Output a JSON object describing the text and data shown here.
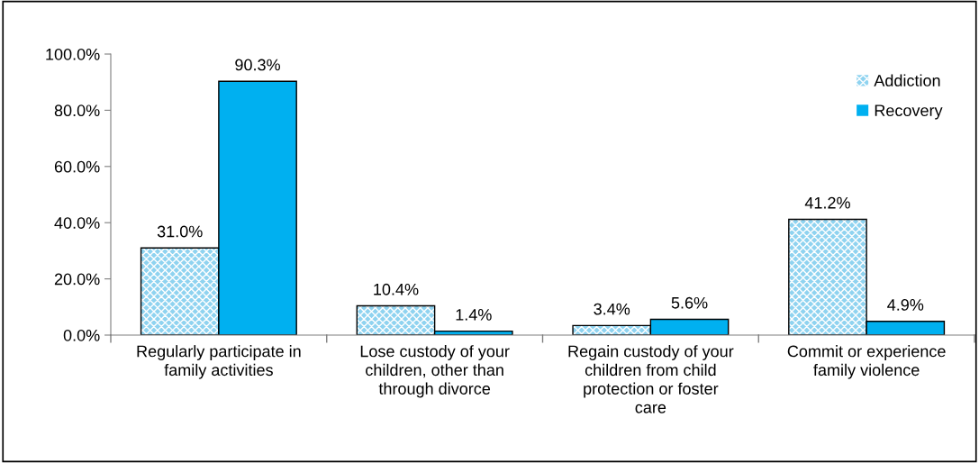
{
  "chart_data": {
    "type": "bar",
    "categories": [
      "Regularly participate in\nfamily activities",
      "Lose custody of your\nchildren, other than\nthrough divorce",
      "Regain custody of your\nchildren from child\nprotection or foster\ncare",
      "Commit or experience\nfamily violence"
    ],
    "series": [
      {
        "name": "Addiction",
        "color": "#8fd3f0",
        "values": [
          31.0,
          10.4,
          3.4,
          41.2
        ],
        "value_labels": [
          "31.0%",
          "10.4%",
          "3.4%",
          "41.2%"
        ]
      },
      {
        "name": "Recovery",
        "color": "#00b0f0",
        "values": [
          90.3,
          1.4,
          5.6,
          4.9
        ],
        "value_labels": [
          "90.3%",
          "1.4%",
          "5.6%",
          "4.9%"
        ]
      }
    ],
    "ylim": [
      0,
      100
    ],
    "yticks": [
      {
        "value": 0,
        "label": "0.0%"
      },
      {
        "value": 20,
        "label": "20.0%"
      },
      {
        "value": 40,
        "label": "40.0%"
      },
      {
        "value": 60,
        "label": "60.0%"
      },
      {
        "value": 80,
        "label": "80.0%"
      },
      {
        "value": 100,
        "label": "100.0%"
      }
    ],
    "grid": false,
    "legend": "top right"
  }
}
